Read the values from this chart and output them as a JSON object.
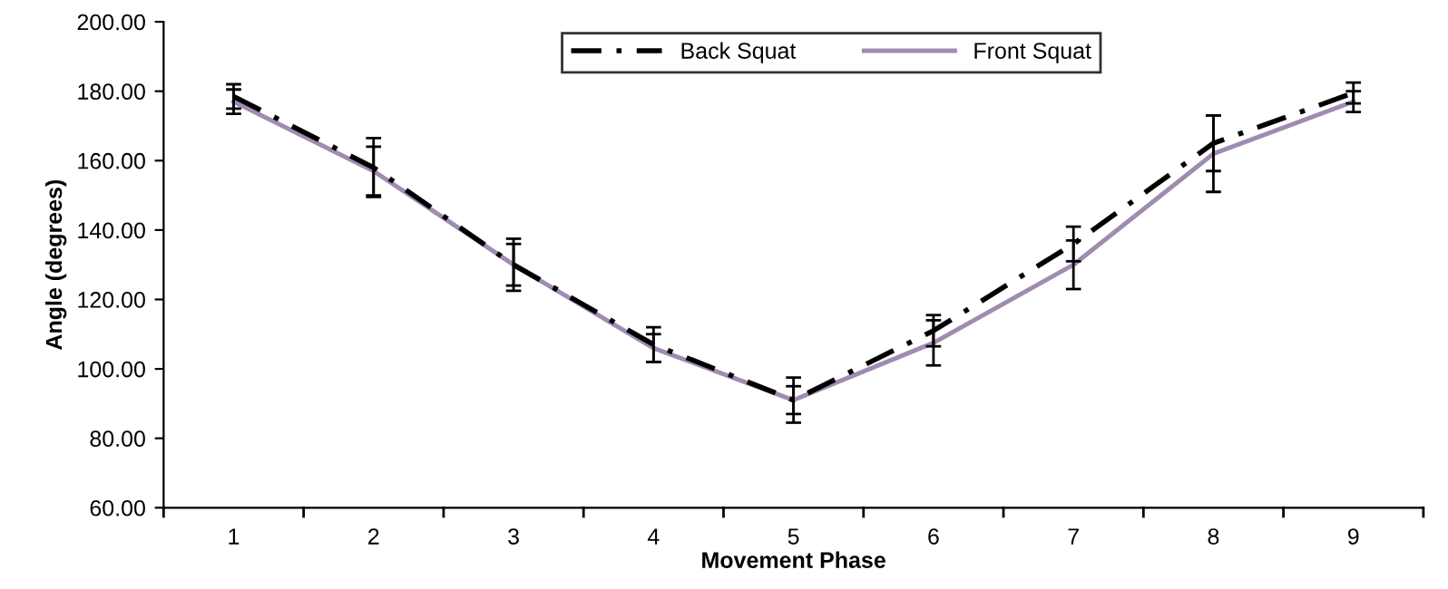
{
  "chart_data": {
    "type": "line",
    "xlabel": "Movement Phase",
    "ylabel": "Angle (degrees)",
    "categories": [
      "1",
      "2",
      "3",
      "4",
      "5",
      "6",
      "7",
      "8",
      "9"
    ],
    "series": [
      {
        "name": "Back Squat",
        "color": "#000000",
        "line_style": "dashed",
        "values": [
          178.5,
          158,
          130,
          107,
          91,
          111,
          136,
          165,
          179.5
        ],
        "errors": [
          3.5,
          8.5,
          7.5,
          5,
          6.5,
          4.5,
          5,
          8,
          3
        ]
      },
      {
        "name": "Front Squat",
        "color": "#a08cb0",
        "line_style": "solid",
        "values": [
          177,
          157,
          130,
          106,
          91,
          107.5,
          130,
          162,
          177
        ],
        "errors": [
          3.5,
          7,
          6,
          4,
          4,
          6.5,
          7,
          11,
          3
        ]
      }
    ],
    "ylim": [
      60,
      200
    ],
    "yticks": [
      {
        "value": 60,
        "label": "60.00"
      },
      {
        "value": 80,
        "label": "80.00"
      },
      {
        "value": 100,
        "label": "100.00"
      },
      {
        "value": 120,
        "label": "120.00"
      },
      {
        "value": 140,
        "label": "140.00"
      },
      {
        "value": 160,
        "label": "160.00"
      },
      {
        "value": 180,
        "label": "180.00"
      },
      {
        "value": 200,
        "label": "200.00"
      }
    ],
    "grid": false,
    "legend": "top",
    "marker": "none"
  }
}
